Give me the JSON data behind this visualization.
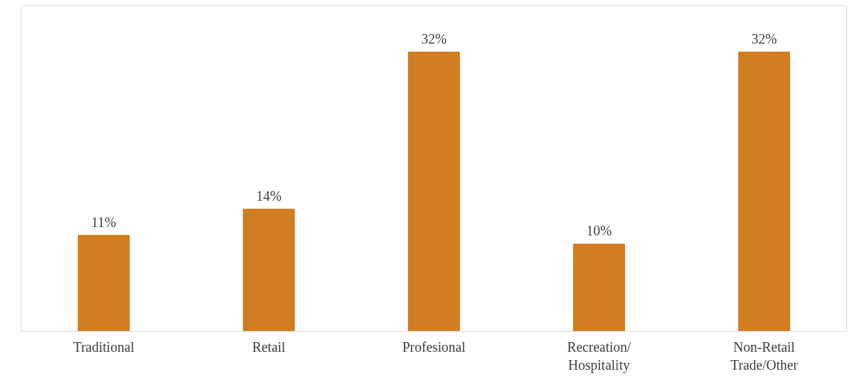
{
  "chart_data": {
    "type": "bar",
    "categories": [
      "Traditional",
      "Retail",
      "Profesional",
      "Recreation/\nHospitality",
      "Non-Retail\nTrade/Other"
    ],
    "values": [
      11,
      14,
      32,
      10,
      32
    ],
    "color": "#d07d1f",
    "data_labels": true,
    "value_labels": [
      "11%",
      "14%",
      "32%",
      "10%",
      "32%"
    ]
  }
}
